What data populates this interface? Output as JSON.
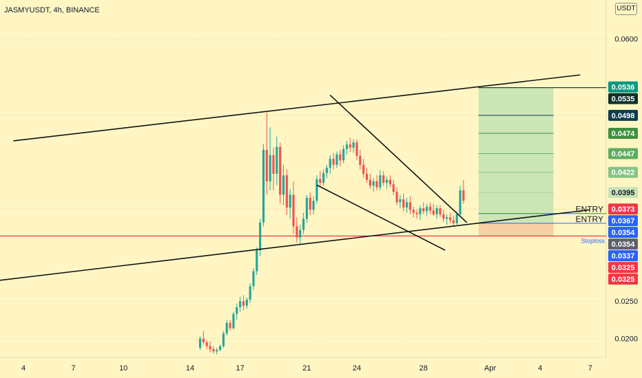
{
  "header": {
    "symbol_line": "JASMYUSDT, 4h, BINANCE",
    "currency": "USDT"
  },
  "chart_data": {
    "type": "candlestick",
    "title": "JASMYUSDT, 4h, BINANCE",
    "ylim": [
      0.0175,
      0.0652
    ],
    "y_ticks": [
      {
        "v": 0.06,
        "label": "0.0600"
      },
      {
        "v": 0.025,
        "label": "0.0250"
      },
      {
        "v": 0.02,
        "label": "0.0200"
      }
    ],
    "x_ticks": [
      "4",
      "7",
      "10",
      "14",
      "17",
      "21",
      "24",
      "28",
      "Apr",
      "4",
      "7"
    ],
    "x_tick_days": [
      4,
      7,
      10,
      14,
      17,
      21,
      24,
      28,
      32,
      35,
      38
    ],
    "candles": [
      [
        14.6,
        0.0188,
        0.0203,
        0.0185,
        0.02
      ],
      [
        14.8,
        0.02,
        0.021,
        0.0192,
        0.0195
      ],
      [
        15.0,
        0.0195,
        0.0198,
        0.0186,
        0.019
      ],
      [
        15.2,
        0.019,
        0.0196,
        0.0182,
        0.0186
      ],
      [
        15.4,
        0.0186,
        0.019,
        0.018,
        0.0183
      ],
      [
        15.6,
        0.0183,
        0.0188,
        0.0179,
        0.0185
      ],
      [
        15.8,
        0.0185,
        0.0192,
        0.0183,
        0.019
      ],
      [
        16.0,
        0.019,
        0.021,
        0.0188,
        0.0207
      ],
      [
        16.2,
        0.0207,
        0.0225,
        0.0204,
        0.0221
      ],
      [
        16.4,
        0.0221,
        0.0225,
        0.0211,
        0.0214
      ],
      [
        16.6,
        0.0214,
        0.0236,
        0.0212,
        0.0233
      ],
      [
        16.8,
        0.0233,
        0.0247,
        0.0225,
        0.0242
      ],
      [
        17.0,
        0.0242,
        0.0256,
        0.0236,
        0.025
      ],
      [
        17.2,
        0.025,
        0.0258,
        0.0238,
        0.0244
      ],
      [
        17.4,
        0.0244,
        0.0255,
        0.024,
        0.0252
      ],
      [
        17.6,
        0.0252,
        0.0274,
        0.0248,
        0.027
      ],
      [
        17.8,
        0.027,
        0.0294,
        0.0265,
        0.029
      ],
      [
        18.0,
        0.029,
        0.0322,
        0.0285,
        0.0318
      ],
      [
        18.2,
        0.0318,
        0.036,
        0.031,
        0.0355
      ],
      [
        18.4,
        0.0355,
        0.046,
        0.035,
        0.0452
      ],
      [
        18.6,
        0.0452,
        0.0502,
        0.0392,
        0.041
      ],
      [
        18.8,
        0.041,
        0.0482,
        0.0398,
        0.0445
      ],
      [
        19.0,
        0.0445,
        0.0455,
        0.0398,
        0.042
      ],
      [
        19.2,
        0.042,
        0.047,
        0.0405,
        0.0456
      ],
      [
        19.4,
        0.0456,
        0.0462,
        0.038,
        0.0392
      ],
      [
        19.6,
        0.0392,
        0.0432,
        0.0378,
        0.0418
      ],
      [
        19.8,
        0.0418,
        0.0426,
        0.0365,
        0.0375
      ],
      [
        20.0,
        0.0375,
        0.04,
        0.036,
        0.0392
      ],
      [
        20.2,
        0.0392,
        0.041,
        0.034,
        0.035
      ],
      [
        20.4,
        0.035,
        0.0362,
        0.0328,
        0.0335
      ],
      [
        20.6,
        0.0335,
        0.0352,
        0.0325,
        0.0345
      ],
      [
        20.8,
        0.0345,
        0.0368,
        0.034,
        0.036
      ],
      [
        21.0,
        0.036,
        0.0392,
        0.0355,
        0.0388
      ],
      [
        21.2,
        0.0388,
        0.0395,
        0.0365,
        0.0372
      ],
      [
        21.4,
        0.0372,
        0.039,
        0.0366,
        0.0384
      ],
      [
        21.6,
        0.0384,
        0.0418,
        0.038,
        0.0413
      ],
      [
        21.8,
        0.0413,
        0.0424,
        0.0402,
        0.0408
      ],
      [
        22.0,
        0.0408,
        0.0426,
        0.0404,
        0.0421
      ],
      [
        22.2,
        0.0421,
        0.0432,
        0.0414,
        0.0428
      ],
      [
        22.4,
        0.0428,
        0.0445,
        0.042,
        0.044
      ],
      [
        22.6,
        0.044,
        0.0448,
        0.0426,
        0.0432
      ],
      [
        22.8,
        0.0432,
        0.045,
        0.0428,
        0.0446
      ],
      [
        23.0,
        0.0446,
        0.0452,
        0.043,
        0.0438
      ],
      [
        23.2,
        0.0438,
        0.0458,
        0.0434,
        0.0453
      ],
      [
        23.4,
        0.0453,
        0.0464,
        0.0446,
        0.0459
      ],
      [
        23.6,
        0.0459,
        0.0468,
        0.0449,
        0.0455
      ],
      [
        23.8,
        0.0455,
        0.0466,
        0.0448,
        0.0462
      ],
      [
        24.0,
        0.0462,
        0.0466,
        0.0438,
        0.0444
      ],
      [
        24.2,
        0.0444,
        0.0452,
        0.0426,
        0.0432
      ],
      [
        24.4,
        0.0432,
        0.044,
        0.0415,
        0.042
      ],
      [
        24.6,
        0.042,
        0.0428,
        0.0408,
        0.0412
      ],
      [
        24.8,
        0.0412,
        0.042,
        0.04,
        0.0404
      ],
      [
        25.0,
        0.0404,
        0.0414,
        0.0396,
        0.041
      ],
      [
        25.2,
        0.041,
        0.0418,
        0.0398,
        0.0402
      ],
      [
        25.4,
        0.0402,
        0.0425,
        0.0398,
        0.0418
      ],
      [
        25.6,
        0.0418,
        0.0424,
        0.0404,
        0.0408
      ],
      [
        25.8,
        0.0408,
        0.0416,
        0.04,
        0.0412
      ],
      [
        26.0,
        0.0412,
        0.0418,
        0.0402,
        0.0406
      ],
      [
        26.2,
        0.0406,
        0.0412,
        0.0392,
        0.0396
      ],
      [
        26.4,
        0.0396,
        0.0402,
        0.0378,
        0.0382
      ],
      [
        26.6,
        0.0382,
        0.0392,
        0.0374,
        0.0386
      ],
      [
        26.8,
        0.0386,
        0.0394,
        0.037,
        0.0375
      ],
      [
        27.0,
        0.0375,
        0.0388,
        0.0368,
        0.0382
      ],
      [
        27.2,
        0.0382,
        0.039,
        0.0366,
        0.0372
      ],
      [
        27.4,
        0.0372,
        0.0376,
        0.0362,
        0.0368
      ],
      [
        27.6,
        0.0368,
        0.0372,
        0.036,
        0.0366
      ],
      [
        27.8,
        0.0366,
        0.0378,
        0.0358,
        0.0374
      ],
      [
        28.0,
        0.0374,
        0.0382,
        0.0366,
        0.037
      ],
      [
        28.2,
        0.037,
        0.038,
        0.0364,
        0.0376
      ],
      [
        28.4,
        0.0376,
        0.0382,
        0.0366,
        0.0371
      ],
      [
        28.6,
        0.0371,
        0.038,
        0.0364,
        0.0366
      ],
      [
        28.8,
        0.0366,
        0.0378,
        0.036,
        0.0374
      ],
      [
        29.0,
        0.0374,
        0.0378,
        0.0362,
        0.0366
      ],
      [
        29.2,
        0.0366,
        0.0372,
        0.0356,
        0.036
      ],
      [
        29.4,
        0.036,
        0.0366,
        0.0352,
        0.0362
      ],
      [
        29.6,
        0.0362,
        0.0368,
        0.0354,
        0.0358
      ],
      [
        29.8,
        0.0358,
        0.0364,
        0.035,
        0.0354
      ],
      [
        30.0,
        0.0354,
        0.037,
        0.0352,
        0.0366
      ],
      [
        30.2,
        0.0366,
        0.0404,
        0.0362,
        0.0398
      ],
      [
        30.4,
        0.0398,
        0.0412,
        0.038,
        0.0384
      ]
    ],
    "lines": [
      {
        "name": "upper-channel",
        "x1": 3.4,
        "y1": 0.0464,
        "x2": 37.4,
        "y2": 0.0552
      },
      {
        "name": "lower-channel",
        "x1": 0.0,
        "y1": 0.0271,
        "x2": 38.0,
        "y2": 0.0372
      },
      {
        "name": "wedge-upper",
        "x1": 22.4,
        "y1": 0.0525,
        "x2": 30.6,
        "y2": 0.0355
      },
      {
        "name": "wedge-lower",
        "x1": 21.6,
        "y1": 0.0405,
        "x2": 29.3,
        "y2": 0.0318
      }
    ],
    "target_zone": {
      "x1": 31.3,
      "x2": 35.8,
      "top": 0.0535,
      "bottom": 0.0354,
      "stop": 0.0337
    },
    "target_lines": [
      0.0498,
      0.0474,
      0.0447,
      0.0422,
      0.0395
    ],
    "entry_lines": [
      0.0367,
      0.0354
    ],
    "stoploss_line": 0.0337,
    "dotted_levels": [
      0.0498,
      0.0373
    ],
    "price_tags": [
      {
        "v": 0.0536,
        "label": "0.0536",
        "color": "#089981"
      },
      {
        "v": 0.0535,
        "label": "0.0535",
        "color": "#10312c"
      },
      {
        "v": 0.0498,
        "label": "0.0498",
        "color": "#0c3d4d"
      },
      {
        "v": 0.0474,
        "label": "0.0474",
        "color": "#3f8f3f"
      },
      {
        "v": 0.0447,
        "label": "0.0447",
        "color": "#5fae5f"
      },
      {
        "v": 0.0422,
        "label": "0.0422",
        "color": "#86c486"
      },
      {
        "v": 0.0395,
        "label": "0.0395",
        "color": "#c7e3b8",
        "text": "#131722"
      },
      {
        "v": 0.0373,
        "label": "0.0373",
        "color": "#f23645"
      },
      {
        "v": 0.0367,
        "label": "0.0367",
        "color": "#2962ff"
      },
      {
        "v": 0.0354,
        "label": "0.0354",
        "color": "#2962ff"
      },
      {
        "v": 0.0354,
        "label": "0.0354",
        "color": "#5d606b"
      },
      {
        "v": 0.0337,
        "label": "0.0337",
        "color": "#2962ff"
      },
      {
        "v": 0.0325,
        "label": "0.0325",
        "color": "#f23645"
      },
      {
        "v": 0.0325,
        "label": "0.0325",
        "color": "#f23645"
      }
    ],
    "annotations": [
      {
        "text": "ENTRY",
        "at": 0.0367
      },
      {
        "text": "ENTRY",
        "at": 0.0354
      },
      {
        "text": "Stoploss",
        "at": 0.0337
      }
    ],
    "colors": {
      "up": "#26a69a",
      "down": "#ef5350",
      "background": "#fff6c4",
      "stoploss": "#f23645",
      "entry": "#2962ff",
      "target": "#3f8f3f"
    }
  }
}
